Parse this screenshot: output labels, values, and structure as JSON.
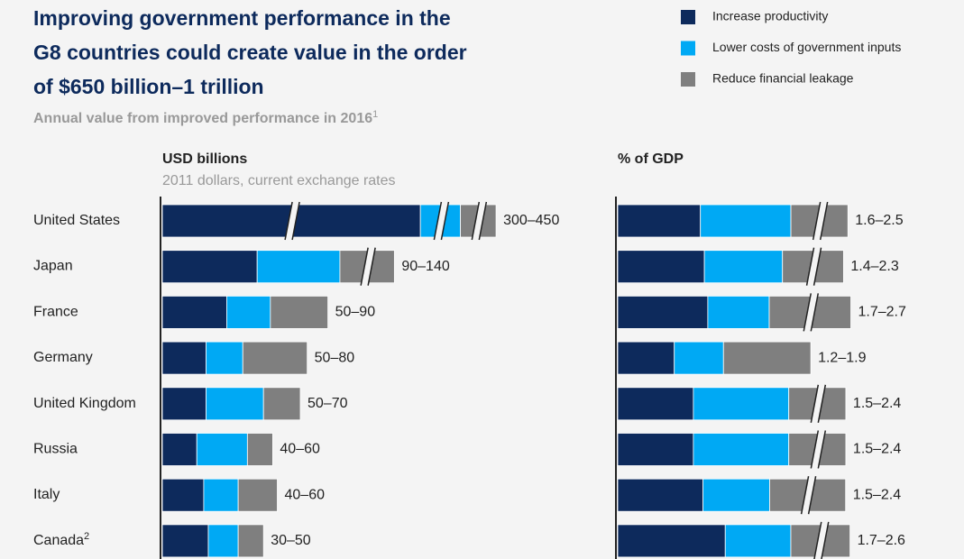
{
  "header": {
    "title": [
      "Improving government performance in the",
      "G8 countries could create value in the order",
      "of $650 billion–1 trillion"
    ],
    "subtitle": "Annual value from improved performance in 2016",
    "subtitle_note": "1"
  },
  "chart_data": [
    {
      "type": "bar",
      "title": "USD billions",
      "subtitle": "2011 dollars, current exchange rates",
      "categories": [
        "United States",
        "Japan",
        "France",
        "Germany",
        "United Kingdom",
        "Russia",
        "Italy",
        "Canada"
      ],
      "category_notes": [
        null,
        null,
        null,
        null,
        null,
        null,
        null,
        "2"
      ],
      "series": [
        {
          "name": "Increase productivity",
          "color": "#0d2a5c",
          "values": [
            290,
            47,
            28,
            19,
            19,
            15,
            18,
            20
          ]
        },
        {
          "name": "Lower costs of government inputs",
          "color": "#00a9f4",
          "values": [
            45,
            41,
            19,
            16,
            25,
            22,
            15,
            13
          ]
        },
        {
          "name": "Reduce financial leakage",
          "color": "#7f7f7f",
          "values": [
            40,
            27,
            25,
            28,
            16,
            11,
            17,
            11
          ]
        }
      ],
      "total_labels": [
        "300–450",
        "90–140",
        "50–90",
        "50–80",
        "50–70",
        "40–60",
        "40–60",
        "30–50"
      ]
    },
    {
      "type": "bar",
      "title": "% of GDP",
      "series": [
        {
          "color": "#0d2a5c",
          "values": [
            0.74,
            0.71,
            0.85,
            0.46,
            0.65,
            0.65,
            0.73,
            1.0
          ]
        },
        {
          "color": "#00a9f4",
          "values": [
            0.81,
            0.64,
            0.58,
            0.4,
            0.82,
            0.82,
            0.57,
            0.61
          ]
        },
        {
          "color": "#7f7f7f",
          "values": [
            0.51,
            0.5,
            0.77,
            0.71,
            0.49,
            0.49,
            0.65,
            0.55
          ]
        }
      ],
      "total_labels": [
        "1.6–2.5",
        "1.4–2.3",
        "1.7–2.7",
        "1.2–1.9",
        "1.5–2.4",
        "1.5–2.4",
        "1.5–2.4",
        "1.7–2.6"
      ]
    }
  ]
}
